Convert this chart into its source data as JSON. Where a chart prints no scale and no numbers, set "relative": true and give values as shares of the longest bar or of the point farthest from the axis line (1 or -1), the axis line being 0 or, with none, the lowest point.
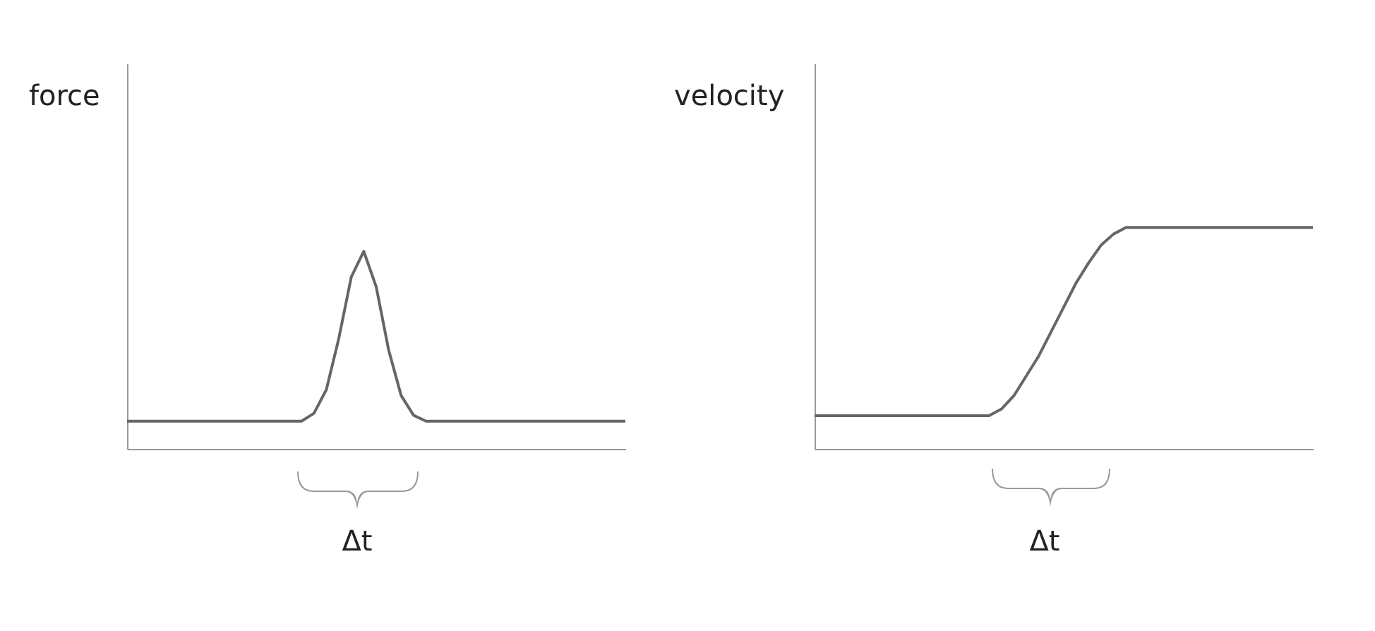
{
  "chart_data": [
    {
      "type": "line",
      "relative": true,
      "ylabel": "force",
      "annotations": [
        "Δt"
      ],
      "categories": [
        null,
        null,
        null,
        null,
        null,
        null,
        null,
        null,
        null,
        null,
        null,
        null,
        null,
        null,
        null,
        null,
        null,
        null,
        null,
        null,
        null,
        null,
        null,
        null,
        null,
        null,
        null,
        null,
        null,
        null,
        null,
        null,
        null,
        null,
        null,
        null,
        null,
        null,
        null,
        null,
        null
      ],
      "series": [
        {
          "color": "#666666",
          "values": [
            0.14,
            0.14,
            0.14,
            0.14,
            0.14,
            0.14,
            0.14,
            0.14,
            0.14,
            0.14,
            0.14,
            0.14,
            0.14,
            0.14,
            0.14,
            0.18,
            0.3,
            0.56,
            0.87,
            1,
            0.82,
            0.5,
            0.27,
            0.17,
            0.14,
            0.14,
            0.14,
            0.14,
            0.14,
            0.14,
            0.14,
            0.14,
            0.14,
            0.14,
            0.14,
            0.14,
            0.14,
            0.14,
            0.14,
            0.14,
            0.14
          ]
        }
      ]
    },
    {
      "type": "line",
      "relative": true,
      "ylabel": "velocity",
      "annotations": [
        "Δt"
      ],
      "categories": [
        null,
        null,
        null,
        null,
        null,
        null,
        null,
        null,
        null,
        null,
        null,
        null,
        null,
        null,
        null,
        null,
        null,
        null,
        null,
        null,
        null,
        null,
        null,
        null,
        null,
        null,
        null,
        null,
        null,
        null,
        null,
        null,
        null,
        null,
        null,
        null,
        null,
        null,
        null,
        null,
        null
      ],
      "series": [
        {
          "color": "#666666",
          "values": [
            0.15,
            0.15,
            0.15,
            0.15,
            0.15,
            0.15,
            0.15,
            0.15,
            0.15,
            0.15,
            0.15,
            0.15,
            0.15,
            0.15,
            0.15,
            0.18,
            0.24,
            0.33,
            0.42,
            0.53,
            0.64,
            0.75,
            0.84,
            0.92,
            0.97,
            1,
            1,
            1,
            1,
            1,
            1,
            1,
            1,
            1,
            1,
            1,
            1,
            1,
            1,
            1,
            1
          ]
        }
      ]
    }
  ]
}
